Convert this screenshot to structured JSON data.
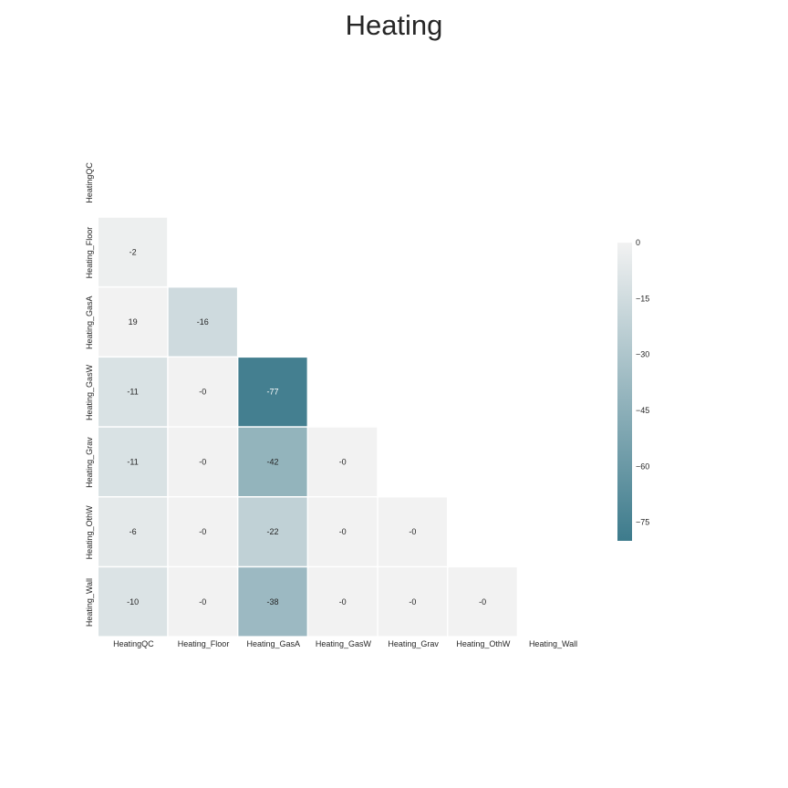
{
  "chart_data": {
    "type": "heatmap",
    "title": "Heating",
    "variables": [
      "HeatingQC",
      "Heating_Floor",
      "Heating_GasA",
      "Heating_GasW",
      "Heating_Grav",
      "Heating_OthW",
      "Heating_Wall"
    ],
    "matrix_lower": [
      [],
      [
        "-2"
      ],
      [
        "19",
        "-16"
      ],
      [
        "-11",
        "-0",
        "-77"
      ],
      [
        "-11",
        "-0",
        "-42",
        "-0"
      ],
      [
        "-6",
        "-0",
        "-22",
        "-0",
        "-0"
      ],
      [
        "-10",
        "-0",
        "-38",
        "-0",
        "-0",
        "-0"
      ]
    ],
    "mask": "upper triangle and diagonal",
    "colorbar": {
      "range": [
        -80,
        0
      ],
      "ticks": [
        "0",
        "−15",
        "−30",
        "−45",
        "−60",
        "−75"
      ],
      "tick_values": [
        0,
        -15,
        -30,
        -45,
        -60,
        -75
      ],
      "low_color": "#3d7b8c",
      "high_color": "#f2f2f2"
    },
    "annotation_light_text_color": "#ffffff",
    "annotation_dark_text_color": "#262626"
  }
}
